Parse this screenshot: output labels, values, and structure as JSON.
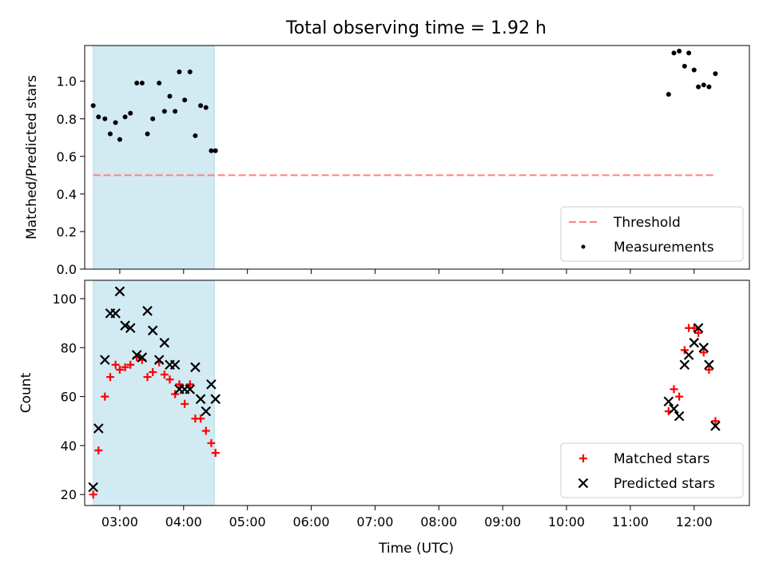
{
  "chart_data": [
    {
      "type": "scatter",
      "title": "Total observing time = 1.92 h",
      "xlabel": "",
      "ylabel": "Matched/Predicted stars",
      "xlim": [
        "02:27",
        "12:52"
      ],
      "ylim": [
        0,
        1.19
      ],
      "yticks": [
        0.0,
        0.2,
        0.4,
        0.6,
        0.8,
        1.0
      ],
      "ytick_labels": [
        "0.0",
        "0.2",
        "0.4",
        "0.6",
        "0.8",
        "1.0"
      ],
      "xticks": [
        "03:00",
        "04:00",
        "05:00",
        "06:00",
        "07:00",
        "08:00",
        "09:00",
        "10:00",
        "11:00",
        "12:00"
      ],
      "show_xtick_labels": false,
      "grid": false,
      "legend_position": "lower-right",
      "shaded_span": {
        "x_start": "02:35",
        "x_end": "04:29",
        "color": "#add8e6"
      },
      "series": [
        {
          "name": "Threshold",
          "kind": "hline",
          "y": 0.5,
          "x_start": "02:35",
          "x_end": "12:20",
          "color": "#ff8080",
          "style": "dashed"
        },
        {
          "name": "Measurements",
          "kind": "points",
          "color": "#000000",
          "points": [
            [
              "02:35",
              0.87
            ],
            [
              "02:40",
              0.81
            ],
            [
              "02:46",
              0.8
            ],
            [
              "02:51",
              0.72
            ],
            [
              "02:56",
              0.78
            ],
            [
              "03:00",
              0.69
            ],
            [
              "03:05",
              0.81
            ],
            [
              "03:10",
              0.83
            ],
            [
              "03:16",
              0.99
            ],
            [
              "03:21",
              0.99
            ],
            [
              "03:26",
              0.72
            ],
            [
              "03:31",
              0.8
            ],
            [
              "03:37",
              0.99
            ],
            [
              "03:42",
              0.84
            ],
            [
              "03:47",
              0.92
            ],
            [
              "03:52",
              0.84
            ],
            [
              "03:56",
              1.05
            ],
            [
              "04:01",
              0.9
            ],
            [
              "04:06",
              1.05
            ],
            [
              "04:11",
              0.71
            ],
            [
              "04:16",
              0.87
            ],
            [
              "04:21",
              0.86
            ],
            [
              "04:26",
              0.63
            ],
            [
              "04:30",
              0.63
            ],
            [
              "11:36",
              0.93
            ],
            [
              "11:41",
              1.15
            ],
            [
              "11:46",
              1.16
            ],
            [
              "11:51",
              1.08
            ],
            [
              "11:55",
              1.15
            ],
            [
              "12:00",
              1.06
            ],
            [
              "12:04",
              0.97
            ],
            [
              "12:09",
              0.98
            ],
            [
              "12:14",
              0.97
            ],
            [
              "12:20",
              1.04
            ]
          ]
        }
      ]
    },
    {
      "type": "scatter",
      "title": "",
      "xlabel": "Time (UTC)",
      "ylabel": "Count",
      "xlim": [
        "02:27",
        "12:52"
      ],
      "ylim": [
        15.5,
        107.5
      ],
      "yticks": [
        20,
        40,
        60,
        80,
        100
      ],
      "ytick_labels": [
        "20",
        "40",
        "60",
        "80",
        "100"
      ],
      "xticks": [
        "03:00",
        "04:00",
        "05:00",
        "06:00",
        "07:00",
        "08:00",
        "09:00",
        "10:00",
        "11:00",
        "12:00"
      ],
      "show_xtick_labels": true,
      "grid": false,
      "legend_position": "lower-right",
      "shaded_span": {
        "x_start": "02:35",
        "x_end": "04:29",
        "color": "#add8e6"
      },
      "series": [
        {
          "name": "Matched stars",
          "kind": "plus",
          "color": "#ff0000",
          "points": [
            [
              "02:35",
              20
            ],
            [
              "02:40",
              38
            ],
            [
              "02:46",
              60
            ],
            [
              "02:51",
              68
            ],
            [
              "02:56",
              73
            ],
            [
              "03:00",
              71
            ],
            [
              "03:05",
              72
            ],
            [
              "03:10",
              73
            ],
            [
              "03:16",
              76
            ],
            [
              "03:21",
              75
            ],
            [
              "03:26",
              68
            ],
            [
              "03:31",
              70
            ],
            [
              "03:37",
              74
            ],
            [
              "03:42",
              69
            ],
            [
              "03:47",
              67
            ],
            [
              "03:52",
              61
            ],
            [
              "03:56",
              65
            ],
            [
              "04:01",
              57
            ],
            [
              "04:06",
              65
            ],
            [
              "04:11",
              51
            ],
            [
              "04:16",
              51
            ],
            [
              "04:21",
              46
            ],
            [
              "04:26",
              41
            ],
            [
              "04:30",
              37
            ],
            [
              "11:36",
              54
            ],
            [
              "11:41",
              63
            ],
            [
              "11:46",
              60
            ],
            [
              "11:51",
              79
            ],
            [
              "11:55",
              88
            ],
            [
              "12:00",
              88
            ],
            [
              "12:04",
              86
            ],
            [
              "12:09",
              78
            ],
            [
              "12:14",
              71
            ],
            [
              "12:20",
              50
            ]
          ]
        },
        {
          "name": "Predicted stars",
          "kind": "x",
          "color": "#000000",
          "points": [
            [
              "02:35",
              23
            ],
            [
              "02:40",
              47
            ],
            [
              "02:46",
              75
            ],
            [
              "02:51",
              94
            ],
            [
              "02:56",
              94
            ],
            [
              "03:00",
              103
            ],
            [
              "03:05",
              89
            ],
            [
              "03:10",
              88
            ],
            [
              "03:16",
              77
            ],
            [
              "03:21",
              76
            ],
            [
              "03:26",
              95
            ],
            [
              "03:31",
              87
            ],
            [
              "03:37",
              75
            ],
            [
              "03:42",
              82
            ],
            [
              "03:47",
              73
            ],
            [
              "03:52",
              73
            ],
            [
              "03:56",
              63
            ],
            [
              "04:01",
              63
            ],
            [
              "04:06",
              63
            ],
            [
              "04:11",
              72
            ],
            [
              "04:16",
              59
            ],
            [
              "04:21",
              54
            ],
            [
              "04:26",
              65
            ],
            [
              "04:30",
              59
            ],
            [
              "11:36",
              58
            ],
            [
              "11:41",
              55
            ],
            [
              "11:46",
              52
            ],
            [
              "11:51",
              73
            ],
            [
              "11:55",
              77
            ],
            [
              "12:00",
              82
            ],
            [
              "12:04",
              88
            ],
            [
              "12:09",
              80
            ],
            [
              "12:14",
              73
            ],
            [
              "12:20",
              48
            ]
          ]
        }
      ]
    }
  ]
}
